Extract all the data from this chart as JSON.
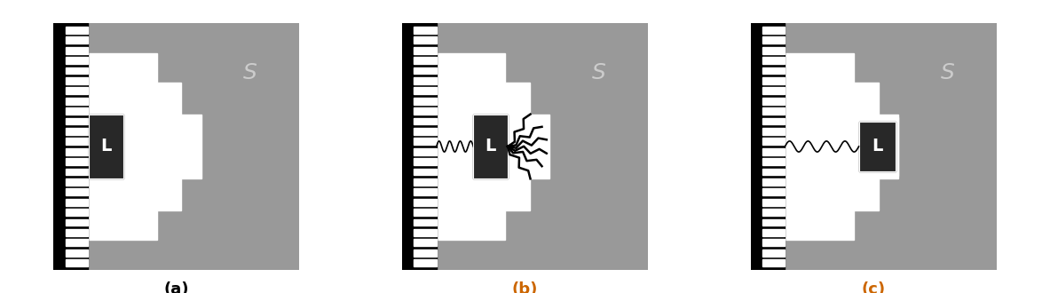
{
  "bg_color": "#ffffff",
  "gray_color": "#999999",
  "white_color": "#ffffff",
  "dark_color": "#282828",
  "black_color": "#000000",
  "S_color": "#cccccc",
  "label_a": "(a)",
  "label_b": "(b)",
  "label_c": "(c)",
  "label_fontsize": 13,
  "S_fontsize": 18,
  "L_fontsize": 14,
  "panel_bg": "#aaaaaa"
}
